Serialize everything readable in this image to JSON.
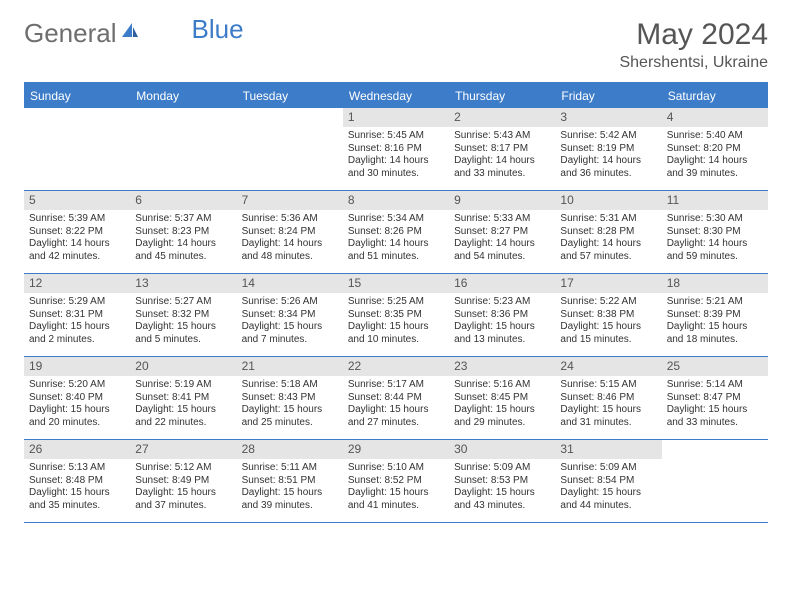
{
  "brand": {
    "part1": "General",
    "part2": "Blue"
  },
  "title": "May 2024",
  "location": "Shershentsi, Ukraine",
  "colors": {
    "accent": "#3d7cc9",
    "header_text": "#ffffff",
    "daybar": "#e5e5e5",
    "text": "#333333",
    "muted": "#555555"
  },
  "day_headers": [
    "Sunday",
    "Monday",
    "Tuesday",
    "Wednesday",
    "Thursday",
    "Friday",
    "Saturday"
  ],
  "weeks": [
    [
      {
        "empty": true
      },
      {
        "empty": true
      },
      {
        "empty": true
      },
      {
        "day": "1",
        "sunrise": "Sunrise: 5:45 AM",
        "sunset": "Sunset: 8:16 PM",
        "daylight": "Daylight: 14 hours and 30 minutes."
      },
      {
        "day": "2",
        "sunrise": "Sunrise: 5:43 AM",
        "sunset": "Sunset: 8:17 PM",
        "daylight": "Daylight: 14 hours and 33 minutes."
      },
      {
        "day": "3",
        "sunrise": "Sunrise: 5:42 AM",
        "sunset": "Sunset: 8:19 PM",
        "daylight": "Daylight: 14 hours and 36 minutes."
      },
      {
        "day": "4",
        "sunrise": "Sunrise: 5:40 AM",
        "sunset": "Sunset: 8:20 PM",
        "daylight": "Daylight: 14 hours and 39 minutes."
      }
    ],
    [
      {
        "day": "5",
        "sunrise": "Sunrise: 5:39 AM",
        "sunset": "Sunset: 8:22 PM",
        "daylight": "Daylight: 14 hours and 42 minutes."
      },
      {
        "day": "6",
        "sunrise": "Sunrise: 5:37 AM",
        "sunset": "Sunset: 8:23 PM",
        "daylight": "Daylight: 14 hours and 45 minutes."
      },
      {
        "day": "7",
        "sunrise": "Sunrise: 5:36 AM",
        "sunset": "Sunset: 8:24 PM",
        "daylight": "Daylight: 14 hours and 48 minutes."
      },
      {
        "day": "8",
        "sunrise": "Sunrise: 5:34 AM",
        "sunset": "Sunset: 8:26 PM",
        "daylight": "Daylight: 14 hours and 51 minutes."
      },
      {
        "day": "9",
        "sunrise": "Sunrise: 5:33 AM",
        "sunset": "Sunset: 8:27 PM",
        "daylight": "Daylight: 14 hours and 54 minutes."
      },
      {
        "day": "10",
        "sunrise": "Sunrise: 5:31 AM",
        "sunset": "Sunset: 8:28 PM",
        "daylight": "Daylight: 14 hours and 57 minutes."
      },
      {
        "day": "11",
        "sunrise": "Sunrise: 5:30 AM",
        "sunset": "Sunset: 8:30 PM",
        "daylight": "Daylight: 14 hours and 59 minutes."
      }
    ],
    [
      {
        "day": "12",
        "sunrise": "Sunrise: 5:29 AM",
        "sunset": "Sunset: 8:31 PM",
        "daylight": "Daylight: 15 hours and 2 minutes."
      },
      {
        "day": "13",
        "sunrise": "Sunrise: 5:27 AM",
        "sunset": "Sunset: 8:32 PM",
        "daylight": "Daylight: 15 hours and 5 minutes."
      },
      {
        "day": "14",
        "sunrise": "Sunrise: 5:26 AM",
        "sunset": "Sunset: 8:34 PM",
        "daylight": "Daylight: 15 hours and 7 minutes."
      },
      {
        "day": "15",
        "sunrise": "Sunrise: 5:25 AM",
        "sunset": "Sunset: 8:35 PM",
        "daylight": "Daylight: 15 hours and 10 minutes."
      },
      {
        "day": "16",
        "sunrise": "Sunrise: 5:23 AM",
        "sunset": "Sunset: 8:36 PM",
        "daylight": "Daylight: 15 hours and 13 minutes."
      },
      {
        "day": "17",
        "sunrise": "Sunrise: 5:22 AM",
        "sunset": "Sunset: 8:38 PM",
        "daylight": "Daylight: 15 hours and 15 minutes."
      },
      {
        "day": "18",
        "sunrise": "Sunrise: 5:21 AM",
        "sunset": "Sunset: 8:39 PM",
        "daylight": "Daylight: 15 hours and 18 minutes."
      }
    ],
    [
      {
        "day": "19",
        "sunrise": "Sunrise: 5:20 AM",
        "sunset": "Sunset: 8:40 PM",
        "daylight": "Daylight: 15 hours and 20 minutes."
      },
      {
        "day": "20",
        "sunrise": "Sunrise: 5:19 AM",
        "sunset": "Sunset: 8:41 PM",
        "daylight": "Daylight: 15 hours and 22 minutes."
      },
      {
        "day": "21",
        "sunrise": "Sunrise: 5:18 AM",
        "sunset": "Sunset: 8:43 PM",
        "daylight": "Daylight: 15 hours and 25 minutes."
      },
      {
        "day": "22",
        "sunrise": "Sunrise: 5:17 AM",
        "sunset": "Sunset: 8:44 PM",
        "daylight": "Daylight: 15 hours and 27 minutes."
      },
      {
        "day": "23",
        "sunrise": "Sunrise: 5:16 AM",
        "sunset": "Sunset: 8:45 PM",
        "daylight": "Daylight: 15 hours and 29 minutes."
      },
      {
        "day": "24",
        "sunrise": "Sunrise: 5:15 AM",
        "sunset": "Sunset: 8:46 PM",
        "daylight": "Daylight: 15 hours and 31 minutes."
      },
      {
        "day": "25",
        "sunrise": "Sunrise: 5:14 AM",
        "sunset": "Sunset: 8:47 PM",
        "daylight": "Daylight: 15 hours and 33 minutes."
      }
    ],
    [
      {
        "day": "26",
        "sunrise": "Sunrise: 5:13 AM",
        "sunset": "Sunset: 8:48 PM",
        "daylight": "Daylight: 15 hours and 35 minutes."
      },
      {
        "day": "27",
        "sunrise": "Sunrise: 5:12 AM",
        "sunset": "Sunset: 8:49 PM",
        "daylight": "Daylight: 15 hours and 37 minutes."
      },
      {
        "day": "28",
        "sunrise": "Sunrise: 5:11 AM",
        "sunset": "Sunset: 8:51 PM",
        "daylight": "Daylight: 15 hours and 39 minutes."
      },
      {
        "day": "29",
        "sunrise": "Sunrise: 5:10 AM",
        "sunset": "Sunset: 8:52 PM",
        "daylight": "Daylight: 15 hours and 41 minutes."
      },
      {
        "day": "30",
        "sunrise": "Sunrise: 5:09 AM",
        "sunset": "Sunset: 8:53 PM",
        "daylight": "Daylight: 15 hours and 43 minutes."
      },
      {
        "day": "31",
        "sunrise": "Sunrise: 5:09 AM",
        "sunset": "Sunset: 8:54 PM",
        "daylight": "Daylight: 15 hours and 44 minutes."
      },
      {
        "empty": true
      }
    ]
  ]
}
